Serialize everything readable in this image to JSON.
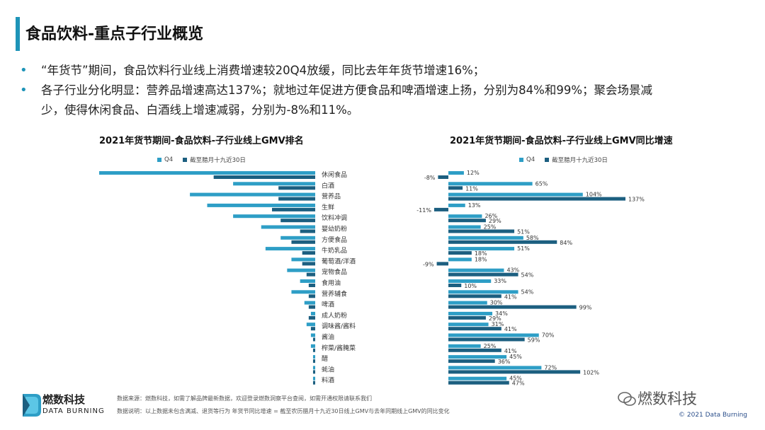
{
  "header": {
    "title": "食品饮料-重点子行业概览"
  },
  "bullets": [
    "“年货节”期间，食品饮料行业线上消费增速较20Q4放缓，同比去年年货节增速16%；",
    "各子行业分化明显：营养品增速高达137%；就地过年促进方便食品和啤酒增速上扬，分别为84%和99%；聚会场景减",
    "少，使得休闲食品、白酒线上增速减弱，分别为-8%和11%。"
  ],
  "bullet_symbol": "•",
  "colors": {
    "q4": "#2e9ec6",
    "recent": "#1c5f80",
    "accent": "#1e94b8"
  },
  "chart_data": [
    {
      "type": "bar",
      "orientation": "horizontal-left",
      "title": "2021年货节期间-食品饮料-子行业线上GMV排名",
      "categories": [
        "休闲食品",
        "白酒",
        "营养品",
        "生鲜",
        "饮料冲调",
        "婴幼奶粉",
        "方便食品",
        "牛奶乳品",
        "葡萄酒/洋酒",
        "宠物食品",
        "食用油",
        "营养辅食",
        "啤酒",
        "成人奶粉",
        "调味酱/酱料",
        "酱油",
        "榨菜/酱腌菜",
        "醋",
        "蚝油",
        "料酒"
      ],
      "series": [
        {
          "name": "Q4",
          "values": [
            100,
            38,
            58,
            50,
            38,
            25,
            16,
            23,
            11,
            13,
            7,
            11,
            5,
            2,
            4,
            2,
            2,
            1,
            1,
            1
          ]
        },
        {
          "name": "截至腊月十九近30日",
          "values": [
            47,
            17,
            17,
            20,
            16,
            7,
            11,
            6,
            6,
            4,
            3,
            3,
            3,
            3,
            2,
            1,
            1,
            1,
            1,
            1
          ]
        }
      ],
      "xlabel": "",
      "ylabel": "",
      "legend": "top-left"
    },
    {
      "type": "bar",
      "orientation": "horizontal",
      "title": "2021年货节期间-食品饮料-子行业线上GMV同比增速",
      "categories": [
        "休闲食品",
        "白酒",
        "营养品",
        "生鲜",
        "饮料冲调",
        "婴幼奶粉",
        "方便食品",
        "牛奶乳品",
        "葡萄酒/洋酒",
        "宠物食品",
        "食用油",
        "营养辅食",
        "啤酒",
        "成人奶粉",
        "调味酱/酱料",
        "酱油",
        "榨菜/酱腌菜",
        "醋",
        "蚝油",
        "料酒"
      ],
      "series": [
        {
          "name": "Q4",
          "values": [
            12,
            65,
            104,
            13,
            26,
            25,
            58,
            51,
            18,
            43,
            33,
            54,
            30,
            34,
            31,
            70,
            25,
            45,
            72,
            45
          ]
        },
        {
          "name": "截至腊月十九近30日",
          "values": [
            -8,
            11,
            137,
            -11,
            29,
            51,
            84,
            18,
            -9,
            54,
            10,
            41,
            99,
            29,
            41,
            59,
            41,
            36,
            102,
            47
          ]
        }
      ],
      "labels": {
        "Q4": [
          "12%",
          "65%",
          "104%",
          "13%",
          "26%",
          "25%",
          "58%",
          "51%",
          "18%",
          "43%",
          "33%",
          "54%",
          "30%",
          "34%",
          "31%",
          "70%",
          "25%",
          "45%",
          "72%",
          "45%"
        ],
        "recent": [
          "-8%",
          "11%",
          "137%",
          "-11%",
          "29%",
          "51%",
          "84%",
          "18%",
          "-9%",
          "54%",
          "10%",
          "41%",
          "99%",
          "29%",
          "41%",
          "59%",
          "41%",
          "36%",
          "102%",
          "47%"
        ]
      },
      "unit": "%",
      "legend": "top-left"
    }
  ],
  "footer": {
    "source": "数据来源：燃数科技，如需了解品牌最新数据，欢迎登录燃数洞察平台查阅，如需开通权限请联系我们",
    "note": "数据说明：以上数据未包含满减、退货等行为   年货节同比增速 = 截至农历腊月十九近30日线上GMV与去年同期线上GMV的同比变化"
  },
  "logo": {
    "name": "燃数科技",
    "sub": "DATA BURNING"
  },
  "watermark": "燃数科技",
  "copyright": "© 2021 Data Burning"
}
